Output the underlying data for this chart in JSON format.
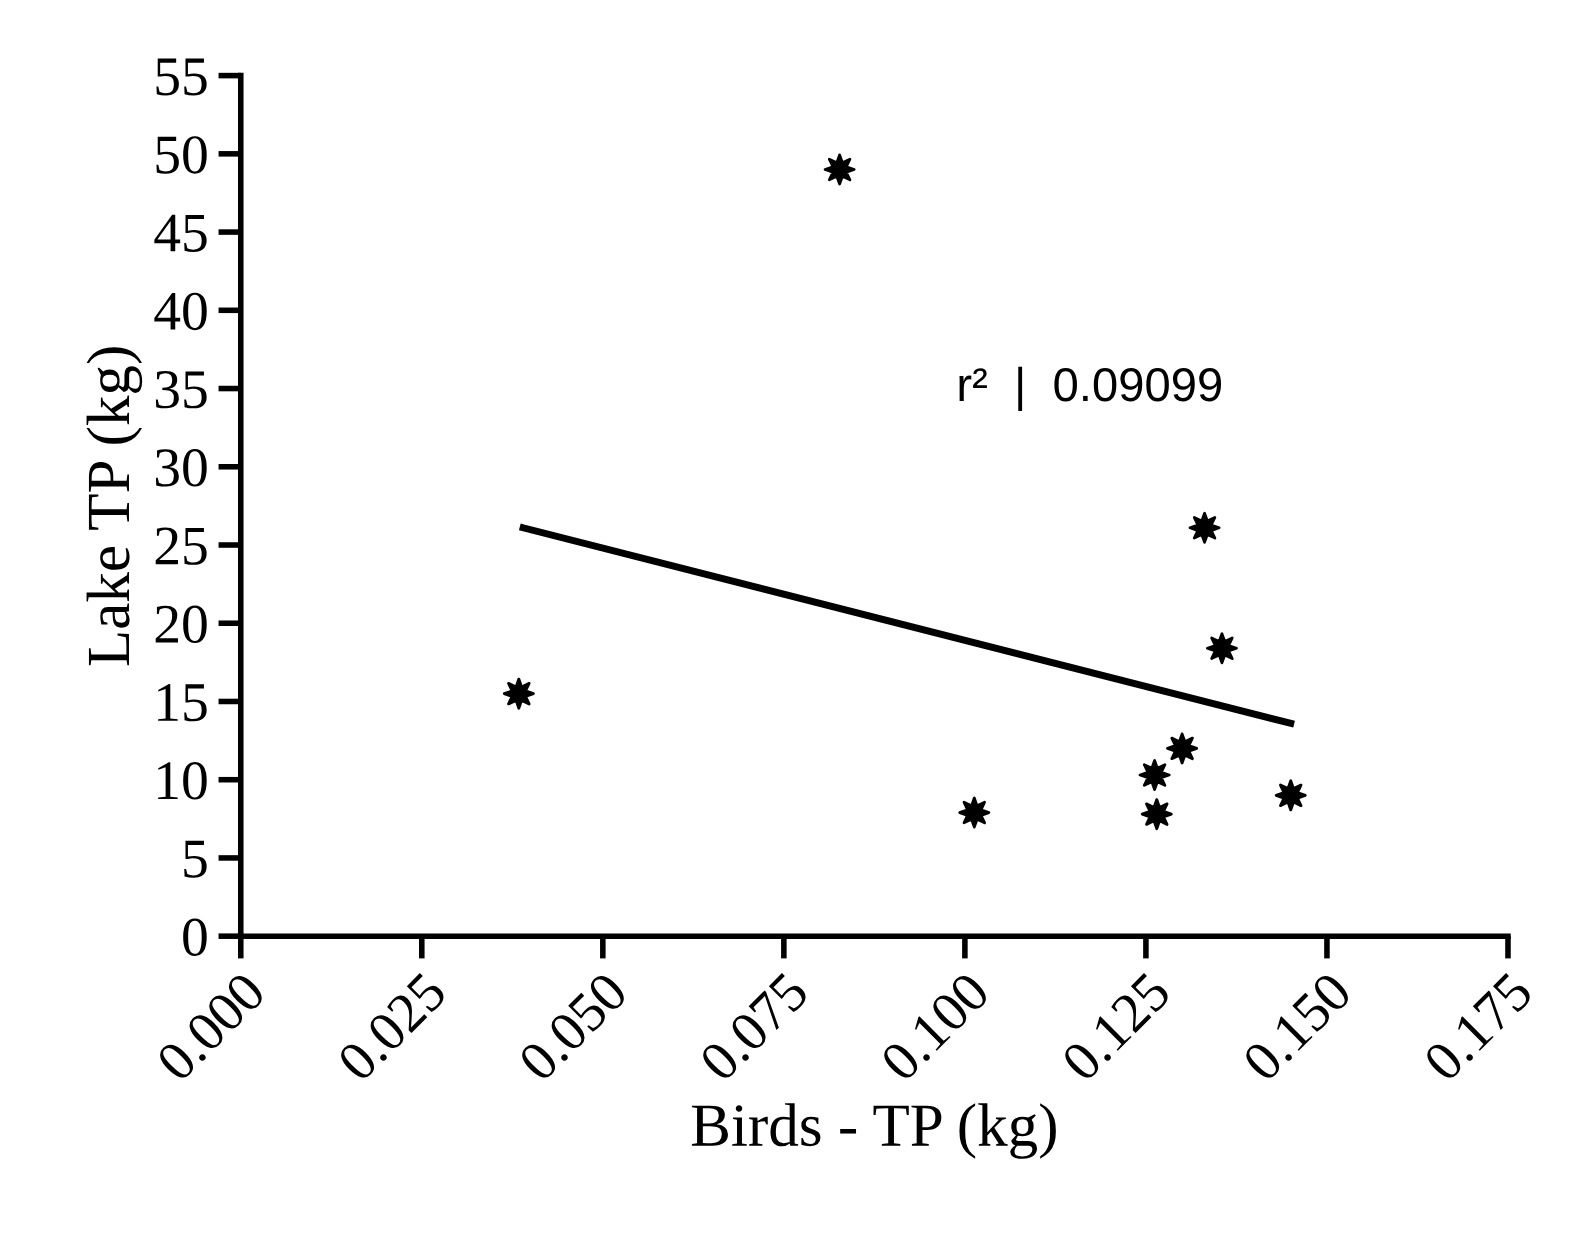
{
  "chart_data": {
    "type": "scatter",
    "xlabel": "Birds - TP (kg)",
    "ylabel": "Lake TP (kg)",
    "xlim": [
      0,
      0.175
    ],
    "xticks": [
      {
        "value": 0,
        "label": "0.000"
      },
      {
        "value": 0.025,
        "label": "0.025"
      },
      {
        "value": 0.05,
        "label": "0.050"
      },
      {
        "value": 0.075,
        "label": "0.075"
      },
      {
        "value": 0.1,
        "label": "0.100"
      },
      {
        "value": 0.125,
        "label": "0.125"
      },
      {
        "value": 0.15,
        "label": "0.150"
      },
      {
        "value": 0.175,
        "label": "0.175"
      }
    ],
    "ylim": [
      0,
      55
    ],
    "yticks": [
      0,
      5,
      10,
      15,
      20,
      25,
      30,
      35,
      40,
      45,
      50,
      55
    ],
    "grid": false,
    "legend": false,
    "series": [
      {
        "marker": "star",
        "color": "#000000",
        "x": [
          0.0384,
          0.0827,
          0.1013,
          0.1262,
          0.1265,
          0.13,
          0.1331,
          0.1355,
          0.145
        ],
        "values": [
          15.5,
          49,
          7.9,
          10.3,
          7.8,
          12.0,
          26.1,
          18.4,
          9.0
        ]
      },
      {
        "type": "line",
        "marker": "none",
        "color": "#000000",
        "x": [
          0.039,
          0.145
        ],
        "values": [
          26.1,
          13.6
        ]
      }
    ],
    "annotations": [
      "r²  |  0.09099"
    ]
  }
}
